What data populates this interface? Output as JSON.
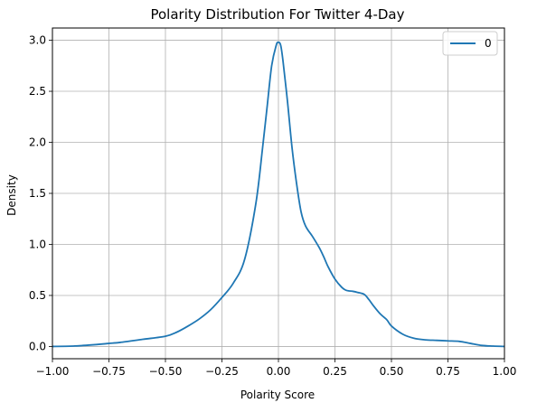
{
  "chart_data": {
    "type": "line",
    "title": "Polarity Distribution For Twitter 4-Day",
    "xlabel": "Polarity Score",
    "ylabel": "Density",
    "xlim": [
      -1.0,
      1.0
    ],
    "ylim": [
      -0.12,
      3.12
    ],
    "x_ticks": [
      -1.0,
      -0.75,
      -0.5,
      -0.25,
      0.0,
      0.25,
      0.5,
      0.75,
      1.0
    ],
    "x_tick_labels": [
      "−1.00",
      "−0.75",
      "−0.50",
      "−0.25",
      "0.00",
      "0.25",
      "0.50",
      "0.75",
      "1.00"
    ],
    "y_ticks": [
      0.0,
      0.5,
      1.0,
      1.5,
      2.0,
      2.5,
      3.0
    ],
    "y_tick_labels": [
      "0.0",
      "0.5",
      "1.0",
      "1.5",
      "2.0",
      "2.5",
      "3.0"
    ],
    "grid": true,
    "legend_position": "top-right",
    "series": [
      {
        "name": "0",
        "color": "#1f77b4",
        "x": [
          -1.0,
          -0.9,
          -0.8,
          -0.75,
          -0.7,
          -0.6,
          -0.5,
          -0.45,
          -0.4,
          -0.35,
          -0.3,
          -0.25,
          -0.2,
          -0.15,
          -0.1,
          -0.07,
          -0.05,
          -0.03,
          -0.01,
          0.0,
          0.01,
          0.02,
          0.04,
          0.06,
          0.08,
          0.1,
          0.12,
          0.15,
          0.18,
          0.2,
          0.22,
          0.25,
          0.28,
          0.3,
          0.33,
          0.35,
          0.38,
          0.4,
          0.42,
          0.45,
          0.48,
          0.5,
          0.55,
          0.6,
          0.65,
          0.7,
          0.75,
          0.8,
          0.85,
          0.9,
          0.95,
          1.0
        ],
        "y": [
          0.0,
          0.005,
          0.02,
          0.03,
          0.04,
          0.07,
          0.1,
          0.14,
          0.2,
          0.27,
          0.36,
          0.48,
          0.62,
          0.85,
          1.4,
          1.95,
          2.35,
          2.75,
          2.95,
          2.98,
          2.95,
          2.8,
          2.4,
          1.95,
          1.6,
          1.32,
          1.18,
          1.08,
          0.97,
          0.88,
          0.78,
          0.66,
          0.58,
          0.55,
          0.54,
          0.53,
          0.51,
          0.46,
          0.4,
          0.32,
          0.26,
          0.2,
          0.12,
          0.08,
          0.065,
          0.06,
          0.055,
          0.05,
          0.03,
          0.01,
          0.004,
          0.0
        ]
      }
    ]
  }
}
